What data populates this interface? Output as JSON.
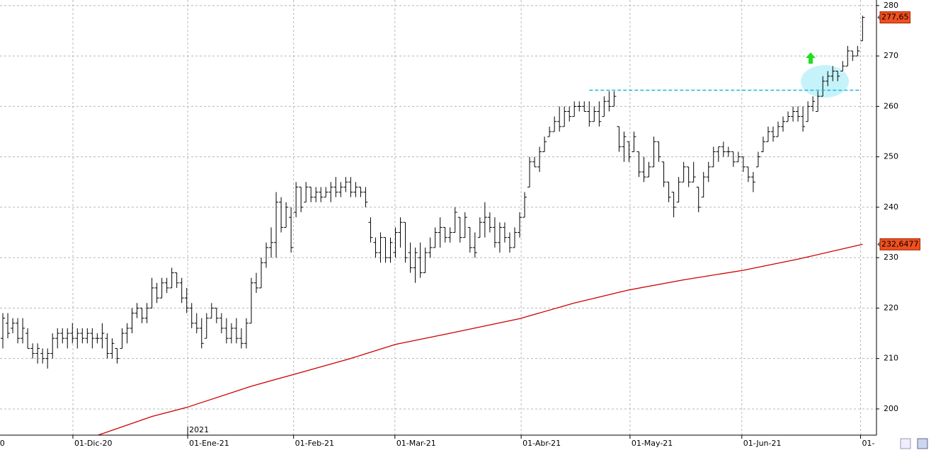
{
  "chart_data": {
    "type": "ohlc",
    "color": "#000000",
    "ylim": [
      194.8,
      281.1
    ],
    "yticks": [
      200,
      210,
      220,
      230,
      240,
      250,
      260,
      270,
      280
    ],
    "grid": true,
    "xlim": [
      -0.57,
      175.8
    ],
    "xticks": [
      {
        "value": -0.9,
        "label": "0"
      },
      {
        "value": 14.1,
        "label": "01-Dic-20"
      },
      {
        "value": 37.2,
        "label": "01-Ene-21"
      },
      {
        "value": 58.5,
        "label": "01-Feb-21"
      },
      {
        "value": 78.9,
        "label": "01-Mar-21"
      },
      {
        "value": 104.3,
        "label": "01-Abr-21"
      },
      {
        "value": 126.2,
        "label": "01-May-21"
      },
      {
        "value": 148.7,
        "label": "01-Jun-21"
      },
      {
        "value": 172.6,
        "label": "01-"
      }
    ],
    "year_label": {
      "value": 37.2,
      "label": "2021"
    },
    "bars": [
      [
        214,
        219,
        212,
        218
      ],
      [
        217,
        219,
        214,
        215
      ],
      [
        216,
        218,
        215,
        217
      ],
      [
        217,
        218,
        213,
        214
      ],
      [
        214,
        218,
        213,
        216
      ],
      [
        215,
        216,
        212,
        212
      ],
      [
        212,
        213,
        210,
        211
      ],
      [
        211,
        213,
        209,
        212
      ],
      [
        211,
        212,
        209,
        210
      ],
      [
        210,
        212,
        208,
        211
      ],
      [
        211,
        215,
        210,
        214
      ],
      [
        214,
        216,
        212,
        215
      ],
      [
        215,
        216,
        213,
        214
      ],
      [
        214,
        216,
        212,
        215
      ],
      [
        215,
        217,
        213,
        214
      ],
      [
        214,
        216,
        212,
        215
      ],
      [
        215,
        216,
        213,
        214
      ],
      [
        214,
        216,
        213,
        215
      ],
      [
        215,
        216,
        212,
        214
      ],
      [
        214,
        215,
        213,
        214
      ],
      [
        214,
        217,
        212,
        215
      ],
      [
        214,
        215,
        210,
        211
      ],
      [
        211,
        214,
        210,
        213
      ],
      [
        212,
        212,
        209,
        210
      ],
      [
        212,
        216,
        212,
        215
      ],
      [
        215,
        217,
        213,
        216
      ],
      [
        216,
        220,
        215,
        219
      ],
      [
        219,
        221,
        218,
        220
      ],
      [
        220,
        220,
        217,
        218
      ],
      [
        218,
        221,
        217,
        220
      ],
      [
        220,
        226,
        220,
        224
      ],
      [
        224,
        225,
        221,
        222
      ],
      [
        222,
        226,
        222,
        225
      ],
      [
        225,
        226,
        223,
        224
      ],
      [
        224,
        228,
        224,
        227
      ],
      [
        227,
        227,
        224,
        225
      ],
      [
        225,
        226,
        221,
        222
      ],
      [
        222,
        224,
        219,
        220
      ],
      [
        220,
        221,
        216,
        217
      ],
      [
        217,
        219,
        215,
        216
      ],
      [
        216,
        218,
        212,
        213
      ],
      [
        214,
        219,
        214,
        218
      ],
      [
        218,
        221,
        218,
        220
      ],
      [
        220,
        220,
        217,
        218
      ],
      [
        218,
        219,
        215,
        216
      ],
      [
        216,
        218,
        213,
        214
      ],
      [
        214,
        217,
        213,
        216
      ],
      [
        216,
        218,
        213,
        214
      ],
      [
        214,
        216,
        212,
        213
      ],
      [
        213,
        218,
        212,
        217
      ],
      [
        217,
        226,
        217,
        225
      ],
      [
        225,
        227,
        223,
        224
      ],
      [
        224,
        230,
        224,
        229
      ],
      [
        229,
        233,
        228,
        232
      ],
      [
        232,
        236,
        230,
        233
      ],
      [
        233,
        243,
        230,
        241
      ],
      [
        241,
        242,
        235,
        236
      ],
      [
        236,
        241,
        236,
        240
      ],
      [
        238,
        240,
        231,
        232
      ],
      [
        239,
        245,
        238,
        244
      ],
      [
        244,
        244,
        239,
        240
      ],
      [
        241,
        245,
        241,
        244
      ],
      [
        244,
        244,
        241,
        242
      ],
      [
        242,
        244,
        241,
        243
      ],
      [
        243,
        244,
        241,
        242
      ],
      [
        242,
        244,
        242,
        243
      ],
      [
        243,
        245,
        241,
        244
      ],
      [
        244,
        246,
        242,
        243
      ],
      [
        243,
        245,
        242,
        244
      ],
      [
        244,
        246,
        243,
        245
      ],
      [
        245,
        246,
        242,
        243
      ],
      [
        243,
        245,
        242,
        244
      ],
      [
        244,
        244,
        242,
        243
      ],
      [
        243,
        244,
        240,
        241
      ],
      [
        237,
        238,
        233,
        234
      ],
      [
        233,
        234,
        230,
        231
      ],
      [
        231,
        235,
        229,
        234
      ],
      [
        234,
        234,
        229,
        230
      ],
      [
        230,
        234,
        229,
        233
      ],
      [
        231,
        236,
        230,
        235
      ],
      [
        235,
        238,
        232,
        237
      ],
      [
        237,
        237,
        229,
        230
      ],
      [
        231,
        233,
        227,
        228
      ],
      [
        228,
        232,
        225,
        231
      ],
      [
        230,
        233,
        226,
        227
      ],
      [
        227,
        232,
        227,
        231
      ],
      [
        231,
        234,
        230,
        232
      ],
      [
        232,
        236,
        232,
        235
      ],
      [
        235,
        238,
        232,
        236
      ],
      [
        236,
        236,
        233,
        234
      ],
      [
        234,
        236,
        233,
        235
      ],
      [
        235,
        240,
        235,
        239
      ],
      [
        238,
        238,
        233,
        234
      ],
      [
        234,
        239,
        234,
        238
      ],
      [
        236,
        236,
        231,
        232
      ],
      [
        232,
        235,
        230,
        231
      ],
      [
        234,
        238,
        234,
        237
      ],
      [
        237,
        241,
        234,
        238
      ],
      [
        238,
        239,
        235,
        236
      ],
      [
        236,
        238,
        232,
        233
      ],
      [
        233,
        237,
        231,
        236
      ],
      [
        236,
        237,
        233,
        234
      ],
      [
        234,
        235,
        231,
        232
      ],
      [
        232,
        236,
        232,
        235
      ],
      [
        235,
        239,
        234,
        238
      ],
      [
        238,
        243,
        238,
        242
      ],
      [
        244,
        250,
        244,
        249
      ],
      [
        249,
        250,
        248,
        248
      ],
      [
        248,
        252,
        247,
        251
      ],
      [
        251,
        254,
        251,
        253
      ],
      [
        254,
        256,
        254,
        255
      ],
      [
        255,
        258,
        255,
        257
      ],
      [
        257,
        260,
        255,
        256
      ],
      [
        256,
        260,
        256,
        259
      ],
      [
        259,
        260,
        257,
        258
      ],
      [
        258,
        261,
        258,
        260
      ],
      [
        260,
        261,
        259,
        260
      ],
      [
        260,
        261,
        259,
        259
      ],
      [
        259,
        261,
        256,
        257
      ],
      [
        257,
        260,
        257,
        259
      ],
      [
        259,
        261,
        256,
        257
      ],
      [
        258,
        262,
        258,
        261
      ],
      [
        261,
        263,
        259,
        260
      ],
      [
        260,
        263,
        260,
        262
      ],
      [
        256,
        256,
        251,
        252
      ],
      [
        252,
        255,
        249,
        254
      ],
      [
        253,
        253,
        249,
        250
      ],
      [
        251,
        255,
        251,
        254
      ],
      [
        251,
        251,
        246,
        247
      ],
      [
        247,
        250,
        245,
        246
      ],
      [
        246,
        249,
        246,
        248
      ],
      [
        248,
        254,
        248,
        253
      ],
      [
        253,
        253,
        249,
        250
      ],
      [
        249,
        249,
        244,
        245
      ],
      [
        245,
        245,
        241,
        242
      ],
      [
        243,
        243,
        238,
        240
      ],
      [
        241,
        246,
        241,
        245
      ],
      [
        245,
        249,
        245,
        248
      ],
      [
        248,
        248,
        244,
        245
      ],
      [
        245,
        249,
        245,
        246
      ],
      [
        244,
        244,
        239,
        240
      ],
      [
        242,
        247,
        242,
        246
      ],
      [
        246,
        249,
        245,
        248
      ],
      [
        248,
        252,
        248,
        251
      ],
      [
        251,
        252,
        249,
        252
      ],
      [
        252,
        253,
        250,
        251
      ],
      [
        251,
        252,
        250,
        251
      ],
      [
        251,
        251,
        248,
        249
      ],
      [
        249,
        251,
        249,
        250
      ],
      [
        250,
        250,
        247,
        248
      ],
      [
        248,
        248,
        245,
        246
      ],
      [
        246,
        247,
        243,
        245
      ],
      [
        248,
        251,
        248,
        250
      ],
      [
        251,
        254,
        251,
        253
      ],
      [
        253,
        256,
        253,
        255
      ],
      [
        255,
        256,
        253,
        254
      ],
      [
        254,
        257,
        254,
        256
      ],
      [
        256,
        258,
        255,
        257
      ],
      [
        257,
        259,
        257,
        258
      ],
      [
        258,
        260,
        257,
        259
      ],
      [
        259,
        260,
        257,
        258
      ],
      [
        258,
        260,
        255,
        256
      ],
      [
        257,
        261,
        257,
        260
      ],
      [
        260,
        262,
        259,
        261
      ],
      [
        259,
        263,
        259,
        262
      ],
      [
        262,
        266,
        262,
        265
      ],
      [
        265,
        267,
        264,
        266
      ],
      [
        266,
        268,
        265,
        267
      ],
      [
        267,
        267,
        265,
        266
      ],
      [
        267,
        269,
        267,
        268
      ],
      [
        268,
        272,
        268,
        271
      ],
      [
        271,
        271,
        269,
        270
      ],
      [
        270,
        272,
        270,
        271
      ],
      [
        273,
        278,
        273,
        277.65
      ]
    ],
    "moving_average": {
      "color": "#cc0000",
      "x": [
        18,
        30,
        37,
        50,
        58,
        70,
        79,
        90,
        104,
        115,
        126,
        137,
        149,
        160,
        173
      ],
      "values": [
        194.4,
        198.5,
        200.3,
        204.5,
        206.7,
        210.0,
        212.8,
        215.0,
        217.9,
        221.0,
        223.6,
        225.6,
        227.5,
        229.7,
        232.65
      ]
    },
    "resistance": {
      "color": "#1ab8d8",
      "value": 263.2,
      "x": [
        118,
        172.5
      ]
    },
    "price_labels": [
      {
        "value": 277.65,
        "label": "277,65"
      },
      {
        "value": 232.6477,
        "label": "232,6477"
      }
    ]
  }
}
